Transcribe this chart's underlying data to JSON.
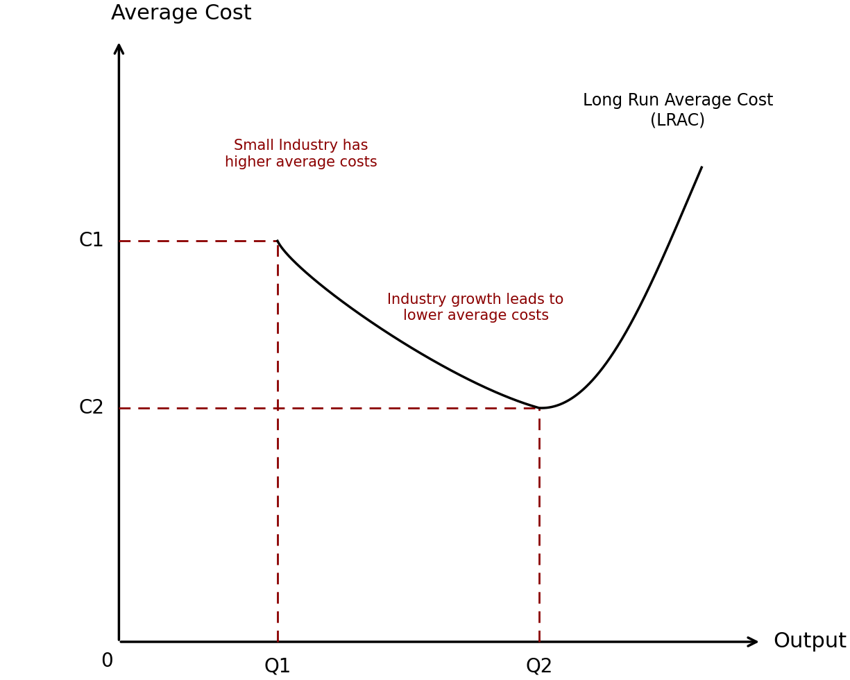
{
  "background_color": "#ffffff",
  "axis_color": "#000000",
  "curve_color": "#000000",
  "dashed_color": "#8b0000",
  "ylabel": "Average Cost",
  "xlabel": "Output",
  "origin_label": "0",
  "c1_label": "C1",
  "c2_label": "C2",
  "q1_label": "Q1",
  "q2_label": "Q2",
  "lrac_label": "Long Run Average Cost\n(LRAC)",
  "annotation1": "Small Industry has\nhigher average costs",
  "annotation2": "Industry growth leads to\nlower average costs",
  "annotation_color": "#8b0000",
  "annotation_fontsize": 15,
  "label_fontsize": 20,
  "axis_label_fontsize": 22,
  "lrac_fontsize": 17,
  "q1_x": 3.5,
  "q2_x": 6.8,
  "c1_y": 6.5,
  "c2_y": 4.0,
  "xmin": 0,
  "xmax": 10,
  "ymin": 0,
  "ymax": 10,
  "ax_origin_x": 1.5,
  "ax_origin_y": 0.5,
  "ax_end_x": 9.6,
  "ax_end_y": 9.5
}
